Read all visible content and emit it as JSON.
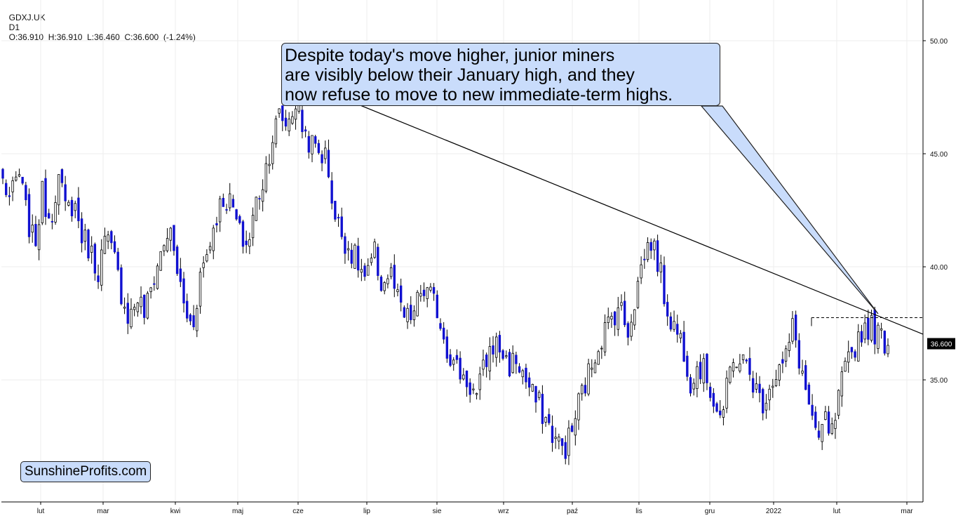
{
  "header": {
    "symbol": "GDXJ.UK",
    "interval": "D1",
    "ohlc": "O:36.910  H:36.910  L:36.460  C:36.600  (-1.24%)"
  },
  "annotation": {
    "lines": [
      "Despite today's move higher, junior miners",
      "are visibly below their January high, and they",
      "now refuse to move to new immediate-term highs."
    ]
  },
  "branding": "SunshineProfits.com",
  "colors": {
    "bear": "#1010d0",
    "bull": "#ffffff",
    "outline": "#000000",
    "callout": "#c9dcfb",
    "grid": "#eeeeee"
  },
  "chart_data": {
    "type": "candlestick",
    "title": "",
    "xlabel": "",
    "ylabel": "",
    "y_axis_position": "right",
    "ylim": [
      29.6,
      51.8
    ],
    "y_ticks": [
      "35.00",
      "40.00",
      "45.00",
      "50.00"
    ],
    "x_ticks": [
      "lut",
      "mar",
      "kwi",
      "maj",
      "cze",
      "lip",
      "sie",
      "wrz",
      "paź",
      "lis",
      "gru",
      "2022",
      "lut",
      "mar"
    ],
    "last_price_label": "36.600",
    "keyframes": [
      {
        "c": 43.8
      },
      {
        "c": 42.9
      },
      {
        "c": 44.2
      },
      {
        "c": 42.3
      },
      {
        "c": 40.9
      },
      {
        "c": 43.2
      },
      {
        "c": 42.1
      },
      {
        "c": 44.0
      },
      {
        "c": 42.4
      },
      {
        "c": 42.9
      },
      {
        "c": 41.4
      },
      {
        "c": 40.8
      },
      {
        "c": 39.8
      },
      {
        "c": 41.2
      },
      {
        "c": 40.5
      },
      {
        "c": 38.9
      },
      {
        "c": 37.7
      },
      {
        "c": 38.7
      },
      {
        "c": 37.9
      },
      {
        "c": 39.4
      },
      {
        "c": 40.6
      },
      {
        "c": 41.7
      },
      {
        "c": 40.0
      },
      {
        "c": 38.1
      },
      {
        "c": 37.3
      },
      {
        "c": 39.7
      },
      {
        "c": 40.8
      },
      {
        "c": 42.3
      },
      {
        "c": 43.1
      },
      {
        "c": 42.7
      },
      {
        "c": 41.4
      },
      {
        "c": 40.9
      },
      {
        "c": 42.8
      },
      {
        "c": 43.9
      },
      {
        "c": 45.6
      },
      {
        "c": 46.7
      },
      {
        "c": 46.3
      },
      {
        "c": 47.3
      },
      {
        "c": 46.1
      },
      {
        "c": 45.4
      },
      {
        "c": 45.1
      },
      {
        "c": 44.8
      },
      {
        "c": 42.2
      },
      {
        "c": 41.4
      },
      {
        "c": 40.7
      },
      {
        "c": 40.1
      },
      {
        "c": 39.3
      },
      {
        "c": 40.6
      },
      {
        "c": 39.1
      },
      {
        "c": 39.8
      },
      {
        "c": 38.4
      },
      {
        "c": 37.6
      },
      {
        "c": 37.9
      },
      {
        "c": 39.0
      },
      {
        "c": 38.7
      },
      {
        "c": 38.1
      },
      {
        "c": 36.7
      },
      {
        "c": 35.7
      },
      {
        "c": 35.3
      },
      {
        "c": 34.8
      },
      {
        "c": 34.2
      },
      {
        "c": 35.7
      },
      {
        "c": 36.6
      },
      {
        "c": 36.4
      },
      {
        "c": 35.6
      },
      {
        "c": 35.9
      },
      {
        "c": 35.1
      },
      {
        "c": 34.3
      },
      {
        "c": 33.8
      },
      {
        "c": 33.0
      },
      {
        "c": 32.3
      },
      {
        "c": 31.9
      },
      {
        "c": 32.7
      },
      {
        "c": 34.2
      },
      {
        "c": 35.1
      },
      {
        "c": 36.3
      },
      {
        "c": 37.1
      },
      {
        "c": 37.7
      },
      {
        "c": 38.4
      },
      {
        "c": 37.1
      },
      {
        "c": 38.6
      },
      {
        "c": 40.4
      },
      {
        "c": 41.2
      },
      {
        "c": 40.1
      },
      {
        "c": 38.2
      },
      {
        "c": 37.3
      },
      {
        "c": 36.7
      },
      {
        "c": 35.0
      },
      {
        "c": 35.7
      },
      {
        "c": 35.2
      },
      {
        "c": 34.1
      },
      {
        "c": 33.3
      },
      {
        "c": 35.3
      },
      {
        "c": 36.1
      },
      {
        "c": 35.6
      },
      {
        "c": 34.9
      },
      {
        "c": 33.9
      },
      {
        "c": 34.8
      },
      {
        "c": 35.4
      },
      {
        "c": 35.8
      },
      {
        "c": 37.4
      },
      {
        "c": 35.5
      },
      {
        "c": 33.9
      },
      {
        "c": 32.0
      },
      {
        "c": 33.2
      },
      {
        "c": 32.5
      },
      {
        "c": 34.6
      },
      {
        "c": 35.8
      },
      {
        "c": 36.7
      },
      {
        "c": 37.4
      },
      {
        "c": 37.3
      },
      {
        "c": 36.9
      },
      {
        "c": 36.6
      }
    ],
    "trendline": {
      "from": {
        "index": 0.35,
        "price": 48.0
      },
      "to": {
        "index": 1.0,
        "price": 37.65
      }
    },
    "resistance_level": 37.75
  }
}
